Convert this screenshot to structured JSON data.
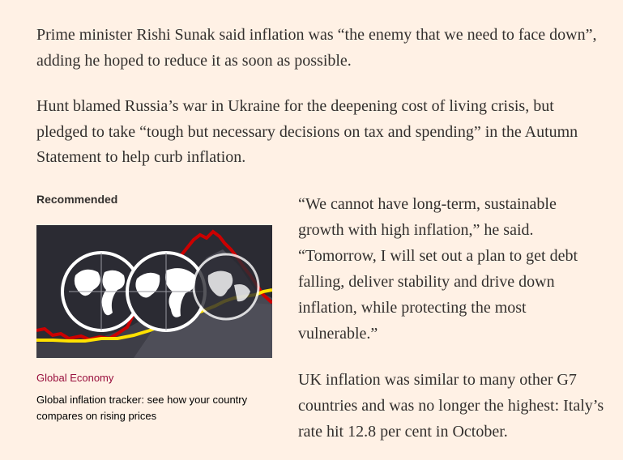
{
  "article": {
    "paragraph_1": "Prime minister Rishi Sunak said inflation was “the enemy that we need to face down”, adding he hoped to reduce it as soon as possible.",
    "paragraph_2": "Hunt blamed Russia’s war in Ukraine for the deepening cost of living crisis, but pledged to take “tough but necessary decisions on tax and spending” in the Autumn Statement to help curb inflation.",
    "quote_paragraph": "“We cannot have long-term, sustainable growth with high inflation,” he said. “Tomorrow, I will set out a plan to get debt falling, deliver stability and drive down inflation, while protecting the most vulnerable.”",
    "paragraph_3": "UK inflation was similar to many other G7 countries and was no longer the highest: Italy’s rate hit 12.8 per cent in October."
  },
  "recommended": {
    "heading": "Recommended",
    "tag": "Global Economy",
    "title": "Global inflation tracker: see how your country compares on rising prices",
    "image_icons": [
      "globe-icon",
      "globe-icon",
      "globe-icon"
    ],
    "colors": {
      "background": "#2b2b33",
      "red_line": "#cc0000",
      "yellow_line": "#ffe100",
      "globe": "#ffffff"
    }
  },
  "theme": {
    "page_background": "#fff1e5",
    "text": "#33302e",
    "tag_color": "#990f3d"
  }
}
